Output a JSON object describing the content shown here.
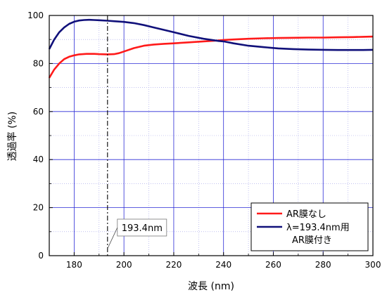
{
  "chart_data": {
    "type": "line",
    "title": "",
    "xlabel": "波長 (nm)",
    "ylabel": "透過率 (%)",
    "xlim": [
      170,
      300
    ],
    "ylim": [
      0,
      100
    ],
    "x_ticks": [
      180,
      200,
      220,
      240,
      260,
      280,
      300
    ],
    "y_ticks": [
      0,
      20,
      40,
      60,
      80,
      100
    ],
    "grid": true,
    "grid_color": "#2b2bd6",
    "minor_grid": true,
    "legend_position": "bottom-right",
    "series": [
      {
        "name": "AR膜なし",
        "color": "#ff1a1a",
        "x": [
          170,
          172,
          174,
          176,
          178,
          180,
          182,
          185,
          188,
          190,
          193.4,
          196,
          198,
          200,
          204,
          208,
          212,
          216,
          220,
          226,
          232,
          238,
          240,
          244,
          250,
          256,
          262,
          268,
          274,
          280,
          286,
          292,
          296,
          300
        ],
        "y": [
          74,
          77.5,
          80,
          81.8,
          82.8,
          83.4,
          83.8,
          84.0,
          84.0,
          83.9,
          83.8,
          83.9,
          84.3,
          85.0,
          86.4,
          87.4,
          87.9,
          88.2,
          88.4,
          88.8,
          89.2,
          89.6,
          89.8,
          90.0,
          90.3,
          90.5,
          90.6,
          90.7,
          90.8,
          90.8,
          90.9,
          91.0,
          91.1,
          91.2
        ]
      },
      {
        "name": "λ=193.4nm用",
        "name_line2": "AR膜付き",
        "color": "#10107a",
        "x": [
          170,
          172,
          174,
          176,
          178,
          180,
          182,
          184,
          186,
          188,
          190,
          193.4,
          196,
          200,
          204,
          208,
          212,
          216,
          220,
          226,
          232,
          238,
          240,
          244,
          250,
          256,
          262,
          268,
          274,
          280,
          286,
          292,
          296,
          300
        ],
        "y": [
          86,
          90,
          93,
          95,
          96.5,
          97.4,
          97.9,
          98.1,
          98.2,
          98.1,
          98.0,
          97.8,
          97.6,
          97.3,
          96.8,
          96.0,
          95.0,
          94.0,
          93.0,
          91.5,
          90.3,
          89.4,
          89.2,
          88.4,
          87.4,
          86.8,
          86.3,
          86.0,
          85.8,
          85.7,
          85.6,
          85.6,
          85.6,
          85.7
        ]
      }
    ],
    "annotations": [
      {
        "type": "vline",
        "x": 193.4,
        "style": "dash-dot",
        "color": "#000000"
      },
      {
        "type": "label",
        "text": "193.4nm",
        "x": 193.4,
        "y": 12
      }
    ]
  }
}
